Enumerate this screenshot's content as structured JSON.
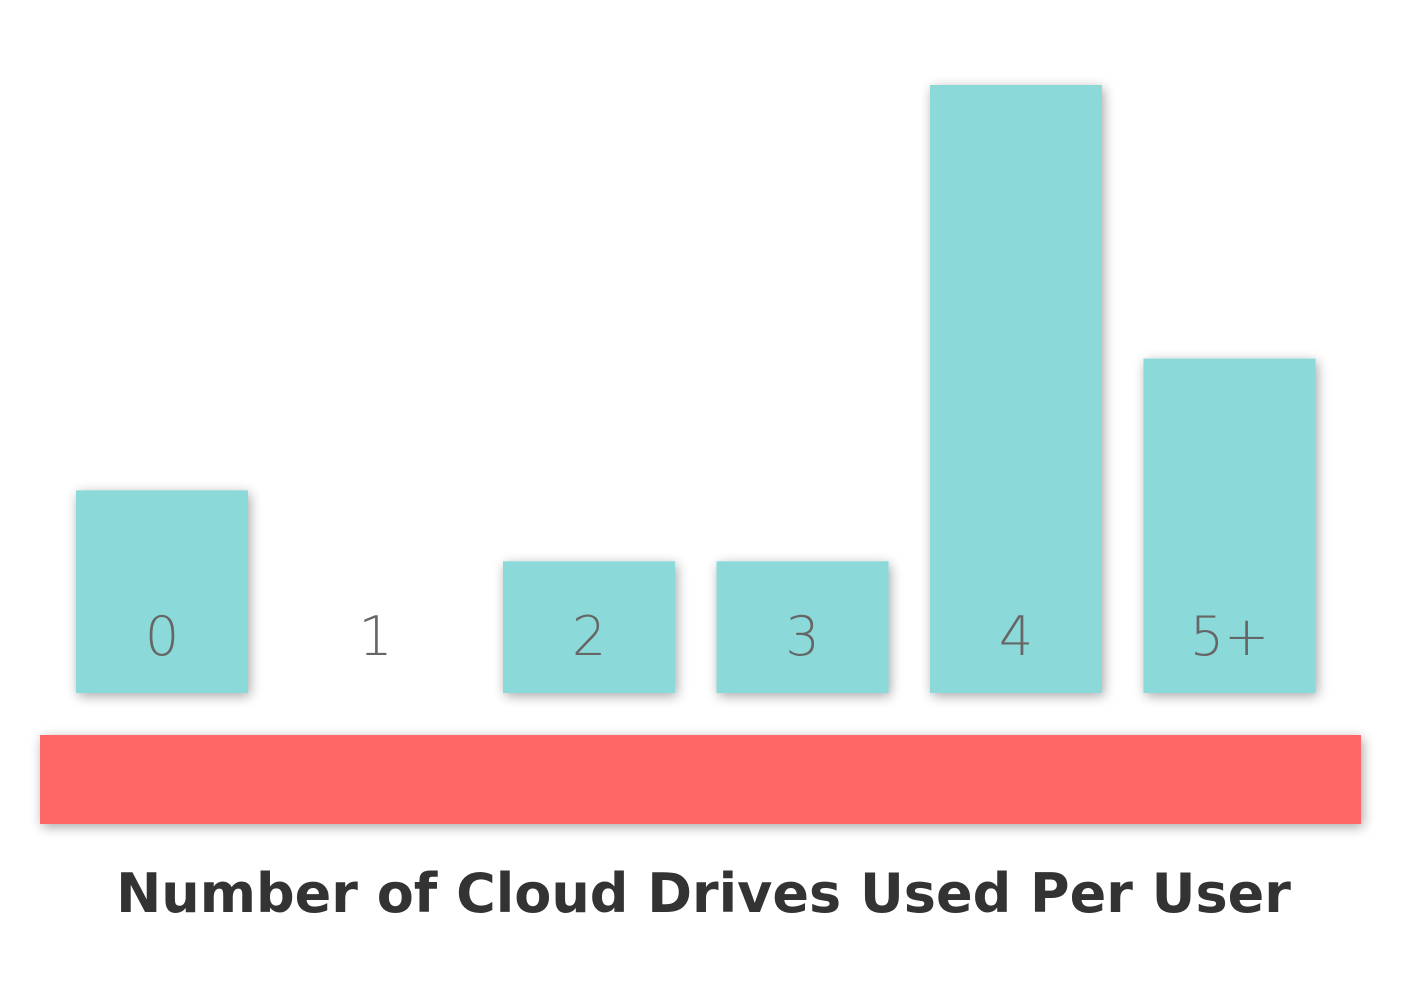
{
  "chart_data": {
    "type": "bar",
    "title": "Number of Cloud Drives Used Per User",
    "categories": [
      "0",
      "1",
      "2",
      "3",
      "4",
      "5+"
    ],
    "values": [
      20,
      0,
      13,
      13,
      60,
      33
    ],
    "ylim": [
      0,
      60
    ],
    "grid": false,
    "legend": "none",
    "xlabel": "",
    "ylabel": ""
  },
  "colors": {
    "bar": "#8cd9d9",
    "baseline": "#ff6666",
    "label": "#666666",
    "title": "#333333",
    "background": "#ffffff"
  }
}
